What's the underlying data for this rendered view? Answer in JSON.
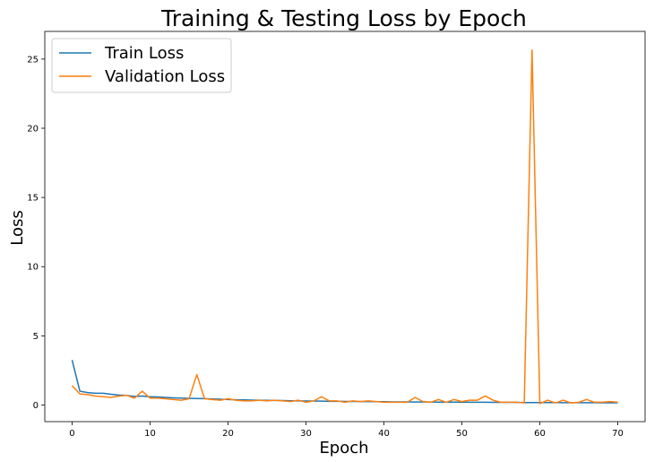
{
  "chart_data": {
    "type": "line",
    "title": "Training & Testing Loss by Epoch",
    "xlabel": "Epoch",
    "ylabel": "Loss",
    "xlim": [
      -3.5,
      73.5
    ],
    "ylim": [
      -1.2,
      27
    ],
    "xticks": [
      0,
      10,
      20,
      30,
      40,
      50,
      60,
      70
    ],
    "yticks": [
      0,
      5,
      10,
      15,
      20,
      25
    ],
    "grid": false,
    "legend_position": "upper-left",
    "x": [
      0,
      1,
      2,
      3,
      4,
      5,
      6,
      7,
      8,
      9,
      10,
      11,
      12,
      13,
      14,
      15,
      16,
      17,
      18,
      19,
      20,
      21,
      22,
      23,
      24,
      25,
      26,
      27,
      28,
      29,
      30,
      31,
      32,
      33,
      34,
      35,
      36,
      37,
      38,
      39,
      40,
      41,
      42,
      43,
      44,
      45,
      46,
      47,
      48,
      49,
      50,
      51,
      52,
      53,
      54,
      55,
      56,
      57,
      58,
      59,
      60,
      61,
      62,
      63,
      64,
      65,
      66,
      67,
      68,
      69,
      70
    ],
    "series": [
      {
        "name": "Train Loss",
        "color": "#1f77b4",
        "values": [
          3.25,
          1.0,
          0.9,
          0.85,
          0.85,
          0.78,
          0.72,
          0.7,
          0.62,
          0.65,
          0.6,
          0.58,
          0.55,
          0.52,
          0.5,
          0.48,
          0.47,
          0.46,
          0.44,
          0.42,
          0.4,
          0.38,
          0.37,
          0.36,
          0.35,
          0.34,
          0.33,
          0.32,
          0.31,
          0.3,
          0.29,
          0.29,
          0.28,
          0.27,
          0.27,
          0.26,
          0.26,
          0.25,
          0.25,
          0.24,
          0.24,
          0.23,
          0.23,
          0.23,
          0.22,
          0.22,
          0.22,
          0.21,
          0.21,
          0.21,
          0.2,
          0.2,
          0.2,
          0.2,
          0.19,
          0.19,
          0.19,
          0.19,
          0.18,
          0.18,
          0.18,
          0.18,
          0.18,
          0.17,
          0.17,
          0.17,
          0.17,
          0.17,
          0.16,
          0.16,
          0.16
        ]
      },
      {
        "name": "Validation Loss",
        "color": "#ff7f0e",
        "values": [
          1.4,
          0.8,
          0.75,
          0.65,
          0.6,
          0.55,
          0.65,
          0.7,
          0.5,
          1.0,
          0.5,
          0.5,
          0.45,
          0.4,
          0.35,
          0.45,
          2.2,
          0.45,
          0.4,
          0.35,
          0.45,
          0.35,
          0.3,
          0.3,
          0.35,
          0.3,
          0.35,
          0.3,
          0.25,
          0.35,
          0.2,
          0.3,
          0.6,
          0.3,
          0.3,
          0.2,
          0.3,
          0.25,
          0.3,
          0.25,
          0.2,
          0.2,
          0.2,
          0.2,
          0.55,
          0.25,
          0.2,
          0.4,
          0.2,
          0.4,
          0.25,
          0.35,
          0.35,
          0.65,
          0.35,
          0.2,
          0.2,
          0.2,
          0.15,
          25.65,
          0.1,
          0.35,
          0.15,
          0.35,
          0.15,
          0.2,
          0.4,
          0.2,
          0.2,
          0.25,
          0.2
        ]
      }
    ]
  }
}
